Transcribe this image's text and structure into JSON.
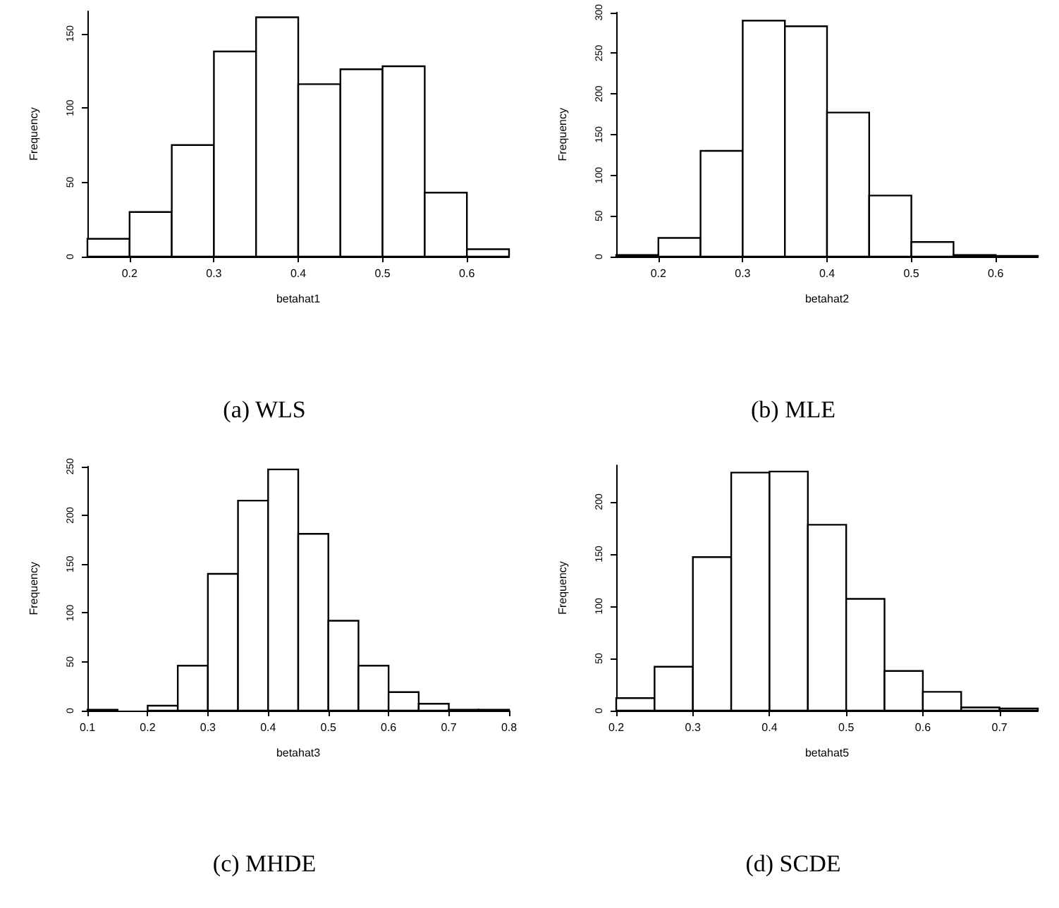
{
  "chart_data": [
    {
      "type": "histogram",
      "title": "(a) WLS",
      "xlabel": "betahat1",
      "ylabel": "Frequency",
      "bins": [
        0.15,
        0.2,
        0.25,
        0.3,
        0.35,
        0.4,
        0.45,
        0.5,
        0.55,
        0.6,
        0.65
      ],
      "values": [
        12,
        30,
        75,
        138,
        161,
        116,
        126,
        128,
        43,
        5
      ],
      "color": "#ffffff",
      "xlim": [
        0.15,
        0.65
      ],
      "xticks": [
        0.2,
        0.3,
        0.4,
        0.5,
        0.6
      ],
      "ylim": [
        0,
        165
      ],
      "yticks": [
        0,
        50,
        100,
        150
      ]
    },
    {
      "type": "histogram",
      "title": "(b) MLE",
      "xlabel": "betahat2",
      "ylabel": "Frequency",
      "bins": [
        0.15,
        0.2,
        0.25,
        0.3,
        0.35,
        0.4,
        0.45,
        0.5,
        0.55,
        0.6,
        0.65
      ],
      "values": [
        2,
        23,
        130,
        290,
        283,
        177,
        75,
        18,
        2,
        1
      ],
      "color": "#ffffff",
      "xlim": [
        0.15,
        0.65
      ],
      "xticks": [
        0.2,
        0.3,
        0.4,
        0.5,
        0.6
      ],
      "ylim": [
        0,
        300
      ],
      "yticks": [
        0,
        50,
        100,
        150,
        200,
        250,
        300
      ]
    },
    {
      "type": "histogram",
      "title": "(c) MHDE",
      "xlabel": "betahat3",
      "ylabel": "Frequency",
      "bins": [
        0.1,
        0.15,
        0.2,
        0.25,
        0.3,
        0.35,
        0.4,
        0.45,
        0.5,
        0.55,
        0.6,
        0.65,
        0.7,
        0.75,
        0.8
      ],
      "values": [
        1,
        0,
        5,
        46,
        140,
        215,
        247,
        181,
        92,
        46,
        19,
        7,
        1,
        1
      ],
      "color": "#ffffff",
      "xlim": [
        0.1,
        0.8
      ],
      "xticks": [
        0.1,
        0.2,
        0.3,
        0.4,
        0.5,
        0.6,
        0.7,
        0.8
      ],
      "ylim": [
        0,
        250
      ],
      "yticks": [
        0,
        50,
        100,
        150,
        200,
        250
      ]
    },
    {
      "type": "histogram",
      "title": "(d) SCDE",
      "xlabel": "betahat5",
      "ylabel": "Frequency",
      "bins": [
        0.2,
        0.25,
        0.3,
        0.35,
        0.4,
        0.45,
        0.5,
        0.55,
        0.6,
        0.65,
        0.7,
        0.75
      ],
      "values": [
        12,
        42,
        147,
        228,
        229,
        178,
        107,
        38,
        18,
        3,
        2
      ],
      "color": "#ffffff",
      "xlim": [
        0.2,
        0.75
      ],
      "xticks": [
        0.2,
        0.3,
        0.4,
        0.5,
        0.6,
        0.7
      ],
      "ylim": [
        0,
        235
      ],
      "yticks": [
        0,
        50,
        100,
        150,
        200
      ]
    }
  ]
}
